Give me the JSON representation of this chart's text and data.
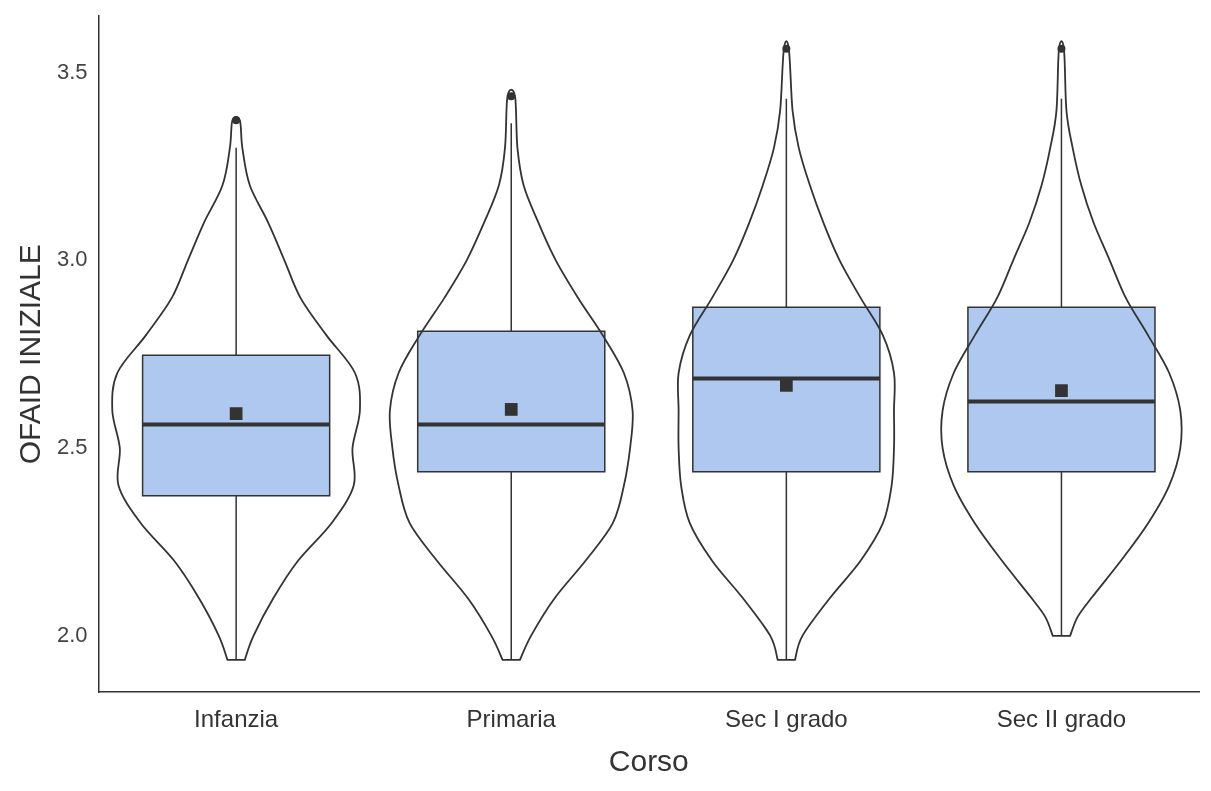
{
  "chart_data": {
    "type": "box",
    "xlabel": "Corso",
    "ylabel": "OFAID INIZIALE",
    "categories": [
      "Infanzia",
      "Primaria",
      "Sec I grado",
      "Sec II grado"
    ],
    "color": "#aec8f0",
    "boxes": [
      {
        "low": 1.936,
        "q1": 2.373,
        "median": 2.563,
        "q3": 2.747,
        "high": 3.3,
        "mean": 2.592,
        "outliers": [
          3.373
        ]
      },
      {
        "low": 1.936,
        "q1": 2.437,
        "median": 2.563,
        "q3": 2.811,
        "high": 3.365,
        "mean": 2.603,
        "outliers": [
          3.437
        ]
      },
      {
        "low": 1.936,
        "q1": 2.437,
        "median": 2.685,
        "q3": 2.875,
        "high": 3.43,
        "mean": 2.667,
        "outliers": [
          3.563
        ]
      },
      {
        "low": 2.0,
        "q1": 2.437,
        "median": 2.624,
        "q3": 2.875,
        "high": 3.43,
        "mean": 2.653,
        "outliers": [
          3.563
        ]
      }
    ],
    "ylim": [
      1.85,
      3.65
    ],
    "yticks": [
      {
        "value": 2,
        "label": "2.0"
      },
      {
        "value": 2.5,
        "label": "2.5"
      },
      {
        "value": 3,
        "label": "3.0"
      },
      {
        "value": 3.5,
        "label": "3.5"
      }
    ]
  }
}
